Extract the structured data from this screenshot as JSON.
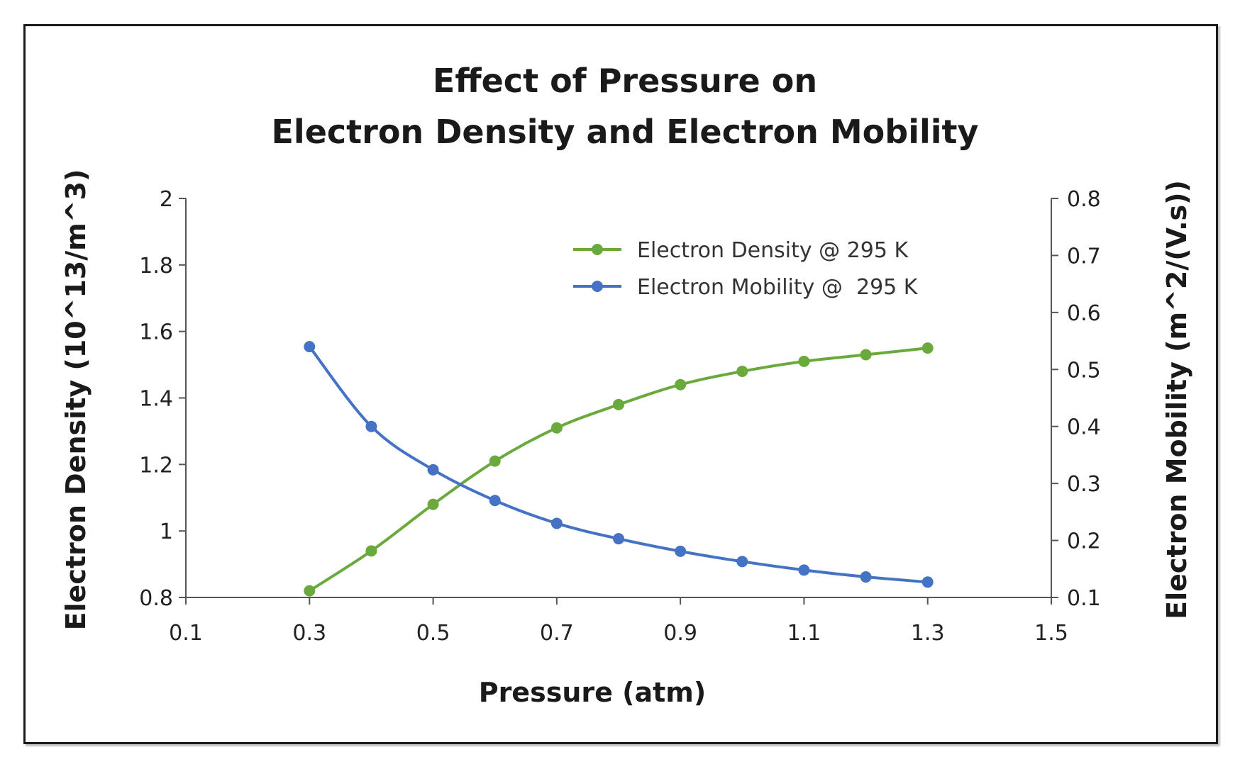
{
  "chart_data": {
    "type": "line",
    "title": [
      "Effect of Pressure on",
      "Electron Density and Electron Mobility"
    ],
    "xlabel": "Pressure (atm)",
    "ylabel": "Electron Density (10^13/m^3)",
    "y2label": "Electron Mobility (m^2/(V.s))",
    "xlim": [
      0.1,
      1.5
    ],
    "ylim": [
      0.8,
      2
    ],
    "y2lim": [
      0.1,
      0.8
    ],
    "xticks": [
      "0.1",
      "0.3",
      "0.5",
      "0.7",
      "0.9",
      "1.1",
      "1.3",
      "1.5"
    ],
    "yticks": [
      "0.8",
      "1",
      "1.2",
      "1.4",
      "1.6",
      "1.8",
      "2"
    ],
    "y2ticks": [
      "0.1",
      "0.2",
      "0.3",
      "0.4",
      "0.5",
      "0.6",
      "0.7",
      "0.8"
    ],
    "grid": false,
    "legend_position": "top-right",
    "series": [
      {
        "name": "Electron Density @ 295 K",
        "axis": "left",
        "color": "#6aaa3c",
        "x": [
          0.3,
          0.4,
          0.5,
          0.6,
          0.7,
          0.8,
          0.9,
          1.0,
          1.1,
          1.2,
          1.3
        ],
        "values": [
          0.82,
          0.94,
          1.08,
          1.21,
          1.31,
          1.38,
          1.44,
          1.48,
          1.51,
          1.53,
          1.55
        ]
      },
      {
        "name": "Electron Mobility @  295 K",
        "axis": "right",
        "color": "#4472c4",
        "x": [
          0.3,
          0.4,
          0.5,
          0.6,
          0.7,
          0.8,
          0.9,
          1.0,
          1.1,
          1.2,
          1.3
        ],
        "values": [
          0.54,
          0.4,
          0.324,
          0.27,
          0.23,
          0.203,
          0.181,
          0.163,
          0.148,
          0.136,
          0.127
        ]
      }
    ]
  }
}
